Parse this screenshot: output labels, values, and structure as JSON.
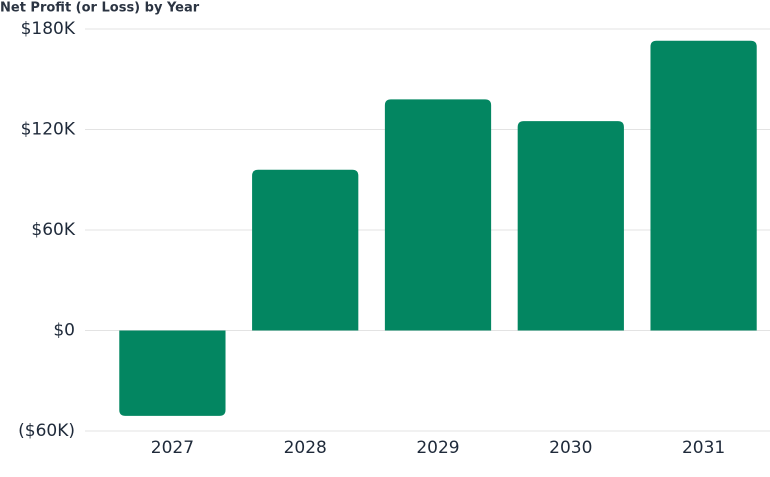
{
  "chart_data": {
    "type": "bar",
    "title": "Net Profit (or Loss) by Year",
    "categories": [
      "2027",
      "2028",
      "2029",
      "2030",
      "2031"
    ],
    "values": [
      -51000,
      96000,
      138000,
      125000,
      173000
    ],
    "color": "#038661",
    "ylim": [
      -60000,
      180000
    ],
    "yticks": [
      {
        "value": -60000,
        "label": "($60K)"
      },
      {
        "value": 0,
        "label": "$0"
      },
      {
        "value": 60000,
        "label": "$60K"
      },
      {
        "value": 120000,
        "label": "$120K"
      },
      {
        "value": 180000,
        "label": "$180K"
      }
    ],
    "grid": true
  }
}
